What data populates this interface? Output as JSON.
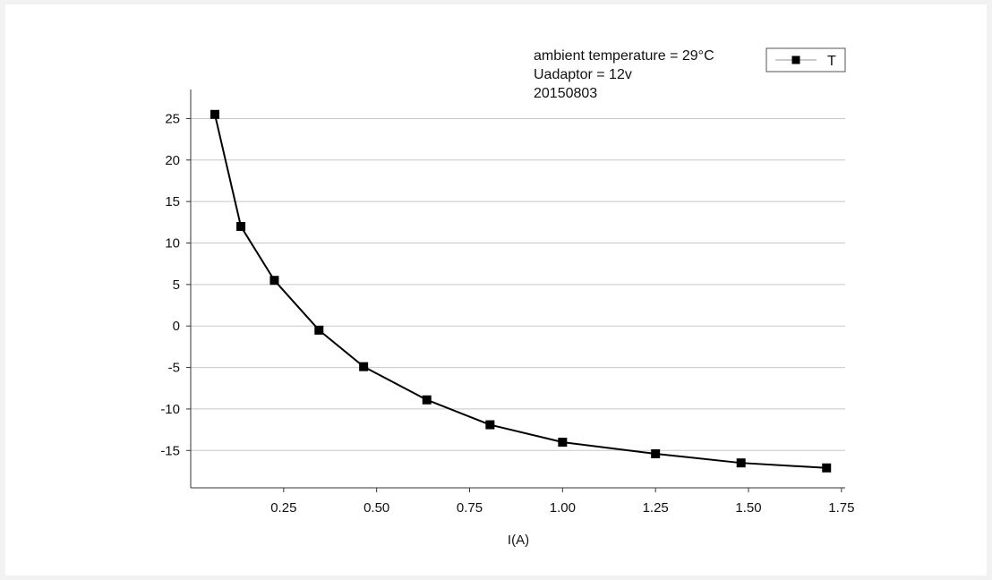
{
  "chart_data": {
    "type": "line",
    "title": "",
    "xlabel": "I(A)",
    "ylabel": "",
    "xlim": [
      0.0,
      1.76
    ],
    "ylim": [
      -19.5,
      28.5
    ],
    "x_ticks": [
      {
        "value": 0.25,
        "label": "0.25"
      },
      {
        "value": 0.5,
        "label": "0.50"
      },
      {
        "value": 0.75,
        "label": "0.75"
      },
      {
        "value": 1.0,
        "label": "1.00"
      },
      {
        "value": 1.25,
        "label": "1.25"
      },
      {
        "value": 1.5,
        "label": "1.50"
      },
      {
        "value": 1.75,
        "label": "1.75"
      }
    ],
    "y_ticks": [
      {
        "value": 25,
        "label": "25"
      },
      {
        "value": 20,
        "label": "20"
      },
      {
        "value": 15,
        "label": "15"
      },
      {
        "value": 10,
        "label": "10"
      },
      {
        "value": 5,
        "label": "5"
      },
      {
        "value": 0,
        "label": "0"
      },
      {
        "value": -5,
        "label": "-5"
      },
      {
        "value": -10,
        "label": "-10"
      },
      {
        "value": -15,
        "label": "-15"
      }
    ],
    "grid": "horizontal",
    "legend_position": "top-right",
    "annotations": [
      "ambient temperature = 29°C",
      "Uadaptor = 12v",
      "20150803"
    ],
    "series": [
      {
        "name": "T",
        "color": "#000000",
        "marker": "square",
        "x": [
          0.065,
          0.135,
          0.225,
          0.345,
          0.465,
          0.635,
          0.805,
          1.0,
          1.25,
          1.48,
          1.71
        ],
        "y": [
          25.5,
          12.0,
          5.5,
          -0.5,
          -4.9,
          -8.9,
          -11.9,
          -14.0,
          -15.4,
          -16.5,
          -17.1
        ]
      }
    ]
  }
}
